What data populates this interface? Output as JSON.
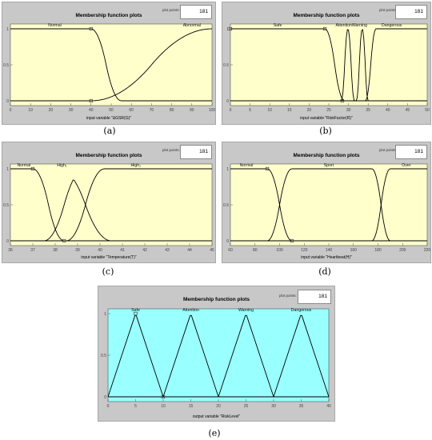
{
  "plot_points_label": "plot points:",
  "chart_data": [
    {
      "type": "line",
      "title": "Membership function plots",
      "plot_points": "181",
      "xlabel": "input variable \"ΔGSR(G)\"",
      "caption": "(a)",
      "bg": "#ffffcc",
      "xlim": [
        0,
        100
      ],
      "ylim": [
        0,
        1
      ],
      "xticks": [
        0,
        10,
        20,
        30,
        40,
        50,
        60,
        70,
        80,
        90,
        100
      ],
      "yticks": [
        0,
        0.5,
        1
      ],
      "series": [
        {
          "name": "Normal",
          "shape": "zmf",
          "params": [
            40,
            55
          ],
          "label_x": 22
        },
        {
          "name": "Abnormal",
          "shape": "smf",
          "params": [
            40,
            100
          ],
          "label_x": 90
        }
      ],
      "selected_markers": [
        [
          40,
          0
        ],
        [
          40,
          1
        ]
      ]
    },
    {
      "type": "line",
      "title": "Membership function plots",
      "plot_points": "181",
      "xlabel": "input variable \"RiskFactor(R)\"",
      "caption": "(b)",
      "bg": "#ffffcc",
      "xlim": [
        0,
        50
      ],
      "ylim": [
        0,
        1
      ],
      "xticks": [
        0,
        5,
        10,
        15,
        20,
        25,
        30,
        35,
        40,
        45,
        50
      ],
      "yticks": [
        0,
        0.5,
        1
      ],
      "series": [
        {
          "name": "Safe",
          "shape": "zmf",
          "params": [
            24,
            29
          ],
          "label_x": 12
        },
        {
          "name": "Attention",
          "shape": "gbell",
          "params": [
            28.2,
            31.5
          ],
          "label_x": 28.8
        },
        {
          "name": "Warning",
          "shape": "gbell",
          "params": [
            32,
            35
          ],
          "label_x": 32.8
        },
        {
          "name": "Dangerous",
          "shape": "smf",
          "params": [
            34.3,
            37
          ],
          "label_x": 41
        }
      ],
      "selected_markers": [
        [
          24,
          1
        ],
        [
          0,
          1
        ],
        [
          28.4,
          0
        ]
      ]
    },
    {
      "type": "line",
      "title": "Membership function plots",
      "plot_points": "181",
      "xlabel": "input variable \"Temperature(T)\"",
      "caption": "(c)",
      "bg": "#ffffcc",
      "xlim": [
        36,
        45
      ],
      "ylim": [
        0,
        1
      ],
      "xticks": [
        36,
        37,
        38,
        39,
        40,
        41,
        42,
        43,
        44,
        45
      ],
      "yticks": [
        0,
        0.5,
        1
      ],
      "series": [
        {
          "name": "Normal",
          "shape": "zmf",
          "params": [
            37,
            38.4
          ],
          "label_x": 36.6
        },
        {
          "name": "High₁",
          "shape": "gbell",
          "params": [
            37.5,
            39.3,
            38.2,
            40.5
          ],
          "label_x": 38.3
        },
        {
          "name": "High₂",
          "shape": "smf",
          "params": [
            38.5,
            40.2
          ],
          "label_x": 41.6
        }
      ],
      "selected_markers": [
        [
          37,
          1
        ],
        [
          38.4,
          0
        ]
      ]
    },
    {
      "type": "line",
      "title": "Membership function plots",
      "plot_points": "181",
      "xlabel": "input variable \"Heartbeat(H)\"",
      "caption": "(d)",
      "bg": "#ffffcc",
      "xlim": [
        60,
        220
      ],
      "ylim": [
        0,
        1
      ],
      "xticks": [
        60,
        80,
        100,
        120,
        140,
        160,
        180,
        200,
        220
      ],
      "yticks": [
        0,
        0.5,
        1
      ],
      "series": [
        {
          "name": "Normal",
          "shape": "zmf",
          "params": [
            90,
            110
          ],
          "label_x": 73
        },
        {
          "name": "Sport",
          "shape": "gbell",
          "params": [
            90,
            110,
            175,
            190
          ],
          "label_x": 140
        },
        {
          "name": "Over",
          "shape": "smf",
          "params": [
            175,
            190
          ],
          "label_x": 203
        }
      ],
      "selected_markers": [
        [
          90,
          1
        ],
        [
          110,
          0
        ]
      ]
    },
    {
      "type": "line",
      "title": "Membership function plots",
      "plot_points": "181",
      "xlabel": "output variable \"RiskLevel\"",
      "caption": "(e)",
      "bg": "#99ffff",
      "xlim": [
        0,
        40
      ],
      "ylim": [
        0,
        1
      ],
      "xticks": [
        0,
        5,
        10,
        15,
        20,
        25,
        30,
        35,
        40
      ],
      "yticks": [
        0,
        0.5,
        1
      ],
      "series": [
        {
          "name": "Safe",
          "shape": "trimf",
          "params": [
            0,
            5,
            10
          ],
          "label_x": 5
        },
        {
          "name": "Attention",
          "shape": "trimf",
          "params": [
            10,
            15,
            20
          ],
          "label_x": 15
        },
        {
          "name": "Warning",
          "shape": "trimf",
          "params": [
            20,
            25,
            30
          ],
          "label_x": 25
        },
        {
          "name": "Dangerous",
          "shape": "trimf",
          "params": [
            30,
            35,
            40
          ],
          "label_x": 35
        }
      ],
      "selected_markers": [
        [
          5,
          1
        ],
        [
          10,
          0
        ]
      ]
    }
  ]
}
